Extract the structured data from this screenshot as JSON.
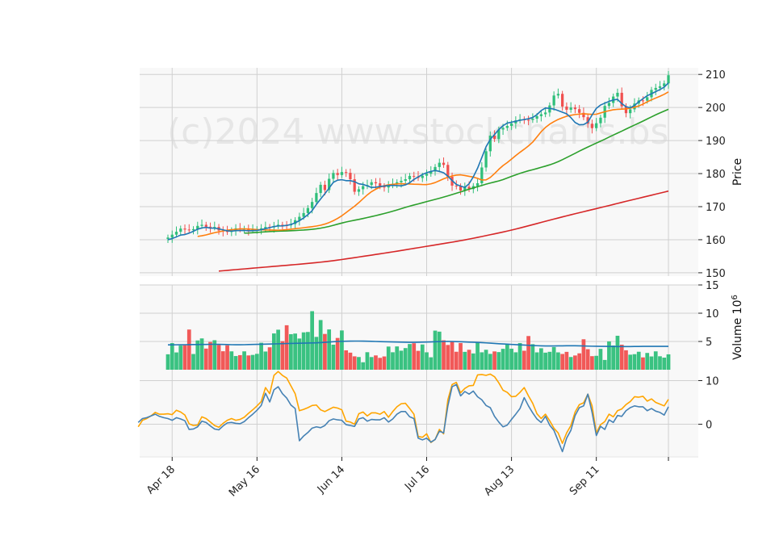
{
  "watermark": "(c)2024 www.stockcharts.bs",
  "colors": {
    "up": "#2fbf7a",
    "down": "#f0504f",
    "sma5": "#1f77b4",
    "sma10": "#ff7f0e",
    "sma20": "#2ca02c",
    "sma100": "#d62728",
    "vol_ma": "#1f77b4",
    "macd": "#4682b4",
    "signal": "#ffa500",
    "panel_bg": "#f8f8f8",
    "grid": "#d0d0d0"
  },
  "chart_data": [
    {
      "type": "candlestick",
      "panel": "price",
      "ylabel": "Price",
      "ylim": [
        149,
        212
      ],
      "yticks": [
        150,
        160,
        170,
        180,
        190,
        200,
        210
      ],
      "x_dates": [
        "2024-04-17",
        "2024-04-18",
        "2024-04-19",
        "2024-04-22",
        "2024-04-23",
        "2024-04-24",
        "2024-04-25",
        "2024-04-26",
        "2024-04-29",
        "2024-04-30",
        "2024-05-01",
        "2024-05-02",
        "2024-05-03",
        "2024-05-06",
        "2024-05-07",
        "2024-05-08",
        "2024-05-09",
        "2024-05-10",
        "2024-05-13",
        "2024-05-14",
        "2024-05-15",
        "2024-05-16",
        "2024-05-17",
        "2024-05-20",
        "2024-05-21",
        "2024-05-22",
        "2024-05-23",
        "2024-05-24",
        "2024-05-28",
        "2024-05-29",
        "2024-05-30",
        "2024-05-31",
        "2024-06-03",
        "2024-06-04",
        "2024-06-05",
        "2024-06-06",
        "2024-06-07",
        "2024-06-10",
        "2024-06-11",
        "2024-06-12",
        "2024-06-13",
        "2024-06-14",
        "2024-06-17",
        "2024-06-18",
        "2024-06-20",
        "2024-06-21",
        "2024-06-24",
        "2024-06-25",
        "2024-06-26",
        "2024-06-27",
        "2024-06-28",
        "2024-07-01",
        "2024-07-02",
        "2024-07-03",
        "2024-07-05",
        "2024-07-08",
        "2024-07-09",
        "2024-07-10",
        "2024-07-11",
        "2024-07-12",
        "2024-07-15",
        "2024-07-16",
        "2024-07-17",
        "2024-07-18",
        "2024-07-19",
        "2024-07-22",
        "2024-07-23",
        "2024-07-24",
        "2024-07-25",
        "2024-07-26",
        "2024-07-29",
        "2024-07-30",
        "2024-07-31",
        "2024-08-01",
        "2024-08-02",
        "2024-08-05",
        "2024-08-06",
        "2024-08-07",
        "2024-08-08",
        "2024-08-09",
        "2024-08-12",
        "2024-08-13",
        "2024-08-14",
        "2024-08-15",
        "2024-08-16",
        "2024-08-19",
        "2024-08-20",
        "2024-08-21",
        "2024-08-22",
        "2024-08-23",
        "2024-08-26",
        "2024-08-27",
        "2024-08-28",
        "2024-08-29",
        "2024-08-30",
        "2024-09-03",
        "2024-09-04",
        "2024-09-05",
        "2024-09-06",
        "2024-09-09",
        "2024-09-10",
        "2024-09-11",
        "2024-09-12",
        "2024-09-13",
        "2024-09-16",
        "2024-09-17",
        "2024-09-18",
        "2024-09-19",
        "2024-09-20",
        "2024-09-23",
        "2024-09-24",
        "2024-09-25",
        "2024-09-26",
        "2024-09-27",
        "2024-09-30",
        "2024-10-01",
        "2024-10-02",
        "2024-10-03",
        "2024-10-04"
      ],
      "x_ticks": [
        {
          "date": "2024-04-18",
          "label": "Apr 18"
        },
        {
          "date": "2024-05-16",
          "label": "May 16"
        },
        {
          "date": "2024-06-14",
          "label": "Jun 14"
        },
        {
          "date": "2024-07-16",
          "label": "Jul 16"
        },
        {
          "date": "2024-08-13",
          "label": "Aug 13"
        },
        {
          "date": "2024-09-11",
          "label": "Sep 11"
        },
        {
          "date": "2024-10-04",
          "label": ""
        }
      ],
      "close": [
        160.65,
        161.53,
        162.41,
        163.37,
        163.08,
        162.88,
        163.19,
        164.18,
        164.51,
        163.94,
        163.72,
        163.86,
        162.79,
        162.61,
        162.34,
        162.85,
        163.44,
        163.14,
        163.32,
        162.86,
        163.05,
        163.19,
        163.45,
        163.86,
        163.74,
        164.14,
        164.52,
        164.38,
        164.35,
        164.73,
        165.91,
        166.93,
        168.06,
        169.57,
        171.42,
        174.12,
        176.61,
        175.02,
        178.42,
        180.19,
        179.57,
        180.46,
        180.24,
        178.29,
        174.51,
        175.27,
        176.21,
        176.55,
        177.38,
        177.07,
        176.18,
        175.8,
        176.49,
        176.91,
        177.38,
        177.82,
        178.3,
        179.3,
        179.14,
        178.68,
        179.36,
        179.95,
        180.63,
        181.99,
        183.28,
        182.63,
        179.05,
        176.36,
        176.12,
        174.87,
        176.03,
        175.31,
        176.23,
        177.08,
        181.85,
        186.76,
        191.5,
        190.46,
        193.32,
        193.82,
        194.41,
        195.18,
        196.08,
        196.4,
        196.26,
        196.24,
        196.62,
        197.38,
        197.96,
        198.48,
        200.62,
        203.62,
        204.12,
        200.27,
        199.31,
        199.98,
        199.5,
        198.38,
        197.06,
        195.08,
        193.75,
        195.24,
        196.91,
        200.47,
        201.38,
        203.31,
        204.44,
        200.35,
        198.28,
        199.44,
        201.19,
        202.14,
        202.07,
        203.1,
        205.32,
        205.92,
        206.41,
        207.28,
        209.76
      ],
      "sma5": [
        160.0,
        160.34,
        160.86,
        161.41,
        161.57,
        161.99,
        162.55,
        163.18,
        163.56,
        163.75,
        163.52,
        163.51,
        163.28,
        162.98,
        162.69,
        162.6,
        162.74,
        162.79,
        162.8,
        162.69,
        162.74,
        162.81,
        163.03,
        163.34,
        163.65,
        163.98,
        164.17,
        164.19,
        164.33,
        164.61,
        165.12,
        165.75,
        166.59,
        167.59,
        168.79,
        170.66,
        172.33,
        173.9,
        175.6,
        177.36,
        178.02,
        178.15,
        177.87,
        177.86,
        177.56,
        176.92,
        176.74,
        176.28,
        175.81,
        175.87,
        176.1,
        176.25,
        176.36,
        176.46,
        176.38,
        176.3,
        176.59,
        177.24,
        178.24,
        179.0,
        179.73,
        180.27,
        180.66,
        180.95,
        180.67,
        180.25,
        179.23,
        177.9,
        176.72,
        176.22,
        175.83,
        176.93,
        179.02,
        181.62,
        184.85,
        188.12,
        190.36,
        191.81,
        193.32,
        194.48,
        195.29,
        195.54,
        195.84,
        196.13,
        196.35,
        196.59,
        196.97,
        197.84,
        199.07,
        199.83,
        199.73,
        199.51,
        199.07,
        198.56,
        198.08,
        196.93,
        195.46,
        194.76,
        194.83,
        195.57,
        197.74,
        199.74,
        200.75,
        201.3,
        201.85,
        202.27,
        202.47,
        201.16,
        200.24,
        199.91,
        200.6,
        201.71,
        202.66,
        203.56,
        204.15,
        204.79,
        205.42,
        206.16,
        207.43
      ],
      "sma10": [
        161.0,
        161.2,
        161.45,
        161.8,
        162.13,
        162.39,
        162.64,
        162.88,
        163.03,
        163.13,
        163.27,
        163.26,
        163.24,
        163.16,
        163.07,
        163.01,
        162.95,
        162.94,
        162.91,
        162.89,
        162.95,
        163.04,
        163.17,
        163.32,
        163.47,
        163.62,
        163.78,
        163.95,
        164.14,
        164.38,
        164.73,
        165.19,
        165.76,
        166.44,
        167.25,
        168.19,
        169.17,
        170.12,
        171.21,
        172.4,
        173.55,
        174.54,
        175.28,
        175.89,
        176.34,
        176.61,
        176.74,
        176.88,
        176.95,
        176.87,
        176.85,
        176.78,
        176.75,
        176.7,
        176.68,
        176.9,
        177.28,
        177.85,
        178.42,
        178.88,
        179.29,
        179.54,
        179.62,
        179.42,
        179.17,
        178.95,
        178.56,
        178.08,
        178.11,
        178.84,
        180.0,
        181.29,
        182.43,
        183.34,
        184.39,
        185.44,
        186.44,
        187.38,
        188.37,
        189.52,
        191.1,
        192.69,
        193.95,
        194.94,
        195.72,
        196.38,
        196.9,
        197.35,
        197.64,
        197.87,
        197.99,
        198.09,
        198.01,
        197.92,
        197.96,
        198.34,
        198.72,
        199.03,
        199.31,
        199.43,
        199.49,
        199.56,
        199.79,
        200.08,
        200.47,
        201.03,
        201.71,
        202.31,
        202.86,
        203.39,
        203.99,
        204.71
      ],
      "sma20": [
        162.0,
        162.03,
        162.12,
        162.21,
        162.31,
        162.38,
        162.46,
        162.53,
        162.58,
        162.62,
        162.66,
        162.72,
        162.79,
        162.86,
        162.93,
        163.03,
        163.15,
        163.3,
        163.5,
        163.74,
        164.02,
        164.35,
        164.7,
        165.04,
        165.36,
        165.63,
        165.89,
        166.14,
        166.42,
        166.7,
        166.99,
        167.29,
        167.6,
        167.92,
        168.26,
        168.62,
        169.0,
        169.4,
        169.79,
        170.16,
        170.5,
        170.83,
        171.18,
        171.53,
        171.87,
        172.2,
        172.54,
        172.89,
        173.27,
        173.66,
        174.06,
        174.45,
        174.87,
        175.28,
        175.66,
        176.04,
        176.42,
        176.8,
        177.15,
        177.46,
        177.78,
        178.19,
        178.68,
        179.16,
        179.62,
        180.06,
        180.48,
        180.85,
        181.18,
        181.52,
        181.9,
        182.26,
        182.65,
        183.09,
        183.61,
        184.21,
        184.85,
        185.49,
        186.14,
        186.8,
        187.43,
        188.04,
        188.64,
        189.23,
        189.8,
        190.4,
        191.04,
        191.66,
        192.26,
        192.85,
        193.47,
        194.08,
        194.68,
        195.27,
        195.89,
        196.52,
        197.15,
        197.77,
        198.36,
        198.91,
        199.45
      ],
      "sma100": [
        150.5,
        150.62,
        150.73,
        150.84,
        150.95,
        151.06,
        151.17,
        151.28,
        151.39,
        151.5,
        151.61,
        151.72,
        151.83,
        151.94,
        152.04,
        152.15,
        152.26,
        152.37,
        152.48,
        152.59,
        152.71,
        152.83,
        152.95,
        153.08,
        153.21,
        153.35,
        153.5,
        153.66,
        153.83,
        154.01,
        154.2,
        154.39,
        154.58,
        154.77,
        154.96,
        155.15,
        155.34,
        155.54,
        155.73,
        155.93,
        156.13,
        156.33,
        156.53,
        156.74,
        156.95,
        157.16,
        157.37,
        157.58,
        157.79,
        158.0,
        158.21,
        158.42,
        158.63,
        158.84,
        159.05,
        159.26,
        159.48,
        159.71,
        159.95,
        160.2,
        160.45,
        160.71,
        160.97,
        161.24,
        161.51,
        161.78,
        162.05,
        162.33,
        162.62,
        162.92,
        163.23,
        163.55,
        163.88,
        164.21,
        164.55,
        164.89,
        165.23,
        165.57,
        165.91,
        166.24,
        166.57,
        166.9,
        167.22,
        167.54,
        167.86,
        168.17,
        168.48,
        168.79,
        169.1,
        169.41,
        169.72,
        170.03,
        170.34,
        170.66,
        170.98,
        171.3,
        171.61,
        171.92,
        172.23,
        172.54,
        172.85,
        173.16,
        173.47,
        173.78,
        174.09,
        174.4,
        174.71
      ]
    },
    {
      "type": "bar",
      "panel": "volume",
      "ylabel": "Volume",
      "ylabel_exponent": "10^6",
      "ylim": [
        0,
        15
      ],
      "yticks": [
        5,
        10,
        15
      ],
      "values": [
        2.73,
        4.71,
        3.06,
        4.27,
        4.33,
        7.11,
        2.78,
        5.18,
        5.54,
        3.74,
        4.91,
        5.22,
        4.39,
        3.27,
        4.32,
        3.25,
        2.42,
        2.58,
        3.25,
        2.53,
        2.62,
        2.81,
        4.77,
        3.22,
        3.97,
        6.42,
        7.08,
        5.05,
        7.87,
        6.29,
        6.4,
        5.52,
        6.61,
        6.68,
        10.36,
        5.81,
        8.79,
        6.33,
        7.13,
        4.43,
        5.62,
        6.95,
        3.43,
        3.02,
        2.37,
        2.25,
        1.32,
        3.1,
        2.24,
        2.53,
        2.1,
        2.35,
        4.1,
        3.09,
        4.12,
        3.37,
        3.83,
        4.55,
        4.69,
        3.34,
        4.47,
        3.08,
        2.2,
        6.92,
        6.74,
        5.21,
        4.38,
        4.95,
        3.18,
        4.72,
        3.16,
        3.53,
        2.88,
        4.91,
        3.08,
        3.53,
        2.8,
        3.24,
        3.12,
        3.7,
        4.59,
        3.72,
        3.08,
        4.72,
        3.36,
        5.96,
        4.52,
        3.07,
        3.8,
        3.02,
        3.17,
        4.01,
        3.07,
        2.79,
        3.16,
        2.25,
        2.52,
        2.9,
        5.39,
        3.63,
        2.4,
        2.46,
        3.69,
        1.73,
        5.01,
        4.28,
        6.01,
        4.43,
        3.44,
        2.66,
        2.75,
        3.18,
        2.18,
        2.97,
        2.35,
        3.25,
        2.38,
        2.14,
        2.72
      ],
      "ma": [
        4.4,
        4.4,
        4.41,
        4.42,
        4.43,
        4.44,
        4.45,
        4.46,
        4.47,
        4.48,
        4.5,
        4.5,
        4.49,
        4.47,
        4.45,
        4.43,
        4.42,
        4.42,
        4.43,
        4.45,
        4.47,
        4.49,
        4.51,
        4.53,
        4.55,
        4.57,
        4.59,
        4.61,
        4.63,
        4.65,
        4.67,
        4.69,
        4.71,
        4.72,
        4.74,
        4.76,
        4.8,
        4.85,
        4.9,
        4.95,
        5.0,
        5.03,
        5.05,
        5.06,
        5.07,
        5.07,
        5.06,
        5.04,
        5.02,
        5.0,
        4.98,
        4.96,
        4.94,
        4.92,
        4.9,
        4.88,
        4.86,
        4.85,
        4.85,
        4.86,
        4.88,
        4.9,
        4.92,
        4.95,
        4.98,
        5.0,
        5.01,
        5.0,
        4.98,
        4.95,
        4.92,
        4.89,
        4.86,
        4.83,
        4.8,
        4.75,
        4.7,
        4.65,
        4.6,
        4.56,
        4.52,
        4.48,
        4.44,
        4.4,
        4.36,
        4.32,
        4.28,
        4.25,
        4.22,
        4.2,
        4.2,
        4.21,
        4.22,
        4.23,
        4.24,
        4.25,
        4.24,
        4.22,
        4.2,
        4.18,
        4.16,
        4.15,
        4.14,
        4.13,
        4.12,
        4.11,
        4.1,
        4.1,
        4.1,
        4.1,
        4.11,
        4.12,
        4.13,
        4.14,
        4.14,
        4.14,
        4.14,
        4.14,
        4.14
      ]
    },
    {
      "type": "line",
      "panel": "macd",
      "ylim": [
        -7.5,
        12.5
      ],
      "yticks": [
        0,
        10
      ],
      "macd": [
        0.4,
        1.3,
        1.5,
        1.9,
        2.3,
        1.8,
        1.5,
        1.3,
        0.9,
        1.5,
        1.2,
        0.8,
        -1.2,
        -1.1,
        -0.6,
        0.7,
        0.4,
        -0.4,
        -1.1,
        -1.3,
        -0.4,
        0.3,
        0.4,
        0.2,
        0.1,
        0.6,
        1.5,
        2.3,
        3.2,
        4.3,
        7.1,
        5.1,
        7.9,
        8.6,
        7.0,
        6.0,
        4.4,
        3.6,
        -3.8,
        -2.7,
        -1.9,
        -0.9,
        -0.6,
        -0.8,
        -0.3,
        0.8,
        1.2,
        1.0,
        0.9,
        -0.1,
        -0.3,
        -0.5,
        1.2,
        1.5,
        0.7,
        1.1,
        1.0,
        1.0,
        1.5,
        0.5,
        1.2,
        2.3,
        2.9,
        2.9,
        1.7,
        1.3,
        -3.2,
        -3.6,
        -3.2,
        -4.1,
        -3.5,
        -1.6,
        -2.0,
        4.2,
        8.6,
        9.1,
        6.5,
        7.5,
        6.9,
        7.6,
        6.3,
        5.6,
        4.3,
        3.8,
        1.8,
        0.5,
        -0.6,
        -0.2,
        1.1,
        2.3,
        3.6,
        6.1,
        4.2,
        2.6,
        1.2,
        0.4,
        1.8,
        -0.2,
        -1.4,
        -3.8,
        -6.3,
        -3.2,
        -1.4,
        2.0,
        3.8,
        4.2,
        6.9,
        2.7,
        -2.6,
        -0.5,
        -1.2,
        1.0,
        0.4,
        2.0,
        1.8,
        3.1,
        3.8,
        4.2,
        4.0,
        4.0,
        3.1,
        3.6,
        3.0,
        2.7,
        2.1,
        4.0
      ],
      "signal": [
        -0.6,
        0.9,
        1.3,
        1.9,
        2.7,
        2.3,
        2.3,
        2.4,
        2.2,
        3.2,
        2.8,
        2.1,
        0.1,
        -0.3,
        -0.2,
        1.7,
        1.3,
        0.5,
        -0.3,
        -0.7,
        0.2,
        0.9,
        1.3,
        0.9,
        1.1,
        1.6,
        2.5,
        3.3,
        4.2,
        5.2,
        8.4,
        7.0,
        11.2,
        12.1,
        11.2,
        10.6,
        8.8,
        7.0,
        3.1,
        3.4,
        3.8,
        4.3,
        4.4,
        3.3,
        2.9,
        3.4,
        3.9,
        3.7,
        3.3,
        0.7,
        0.5,
        0.0,
        2.4,
        2.8,
        1.9,
        2.6,
        2.6,
        2.3,
        2.9,
        1.6,
        2.9,
        4.0,
        4.7,
        4.8,
        3.6,
        2.3,
        -2.8,
        -3.0,
        -2.2,
        -4.2,
        -3.5,
        -1.2,
        -2.2,
        5.6,
        9.1,
        9.6,
        7.2,
        8.2,
        8.8,
        8.9,
        11.3,
        11.4,
        11.2,
        11.5,
        10.9,
        9.5,
        7.8,
        7.3,
        6.3,
        6.4,
        7.3,
        8.4,
        6.5,
        4.8,
        2.4,
        1.3,
        2.3,
        0.8,
        -0.9,
        -2.0,
        -4.4,
        -2.0,
        -0.3,
        2.8,
        4.5,
        4.9,
        6.9,
        4.2,
        -2.0,
        -0.1,
        0.6,
        2.3,
        1.7,
        3.1,
        3.5,
        4.5,
        5.2,
        6.3,
        6.2,
        6.4,
        5.3,
        5.8,
        5.0,
        4.6,
        4.2,
        5.7
      ]
    }
  ]
}
